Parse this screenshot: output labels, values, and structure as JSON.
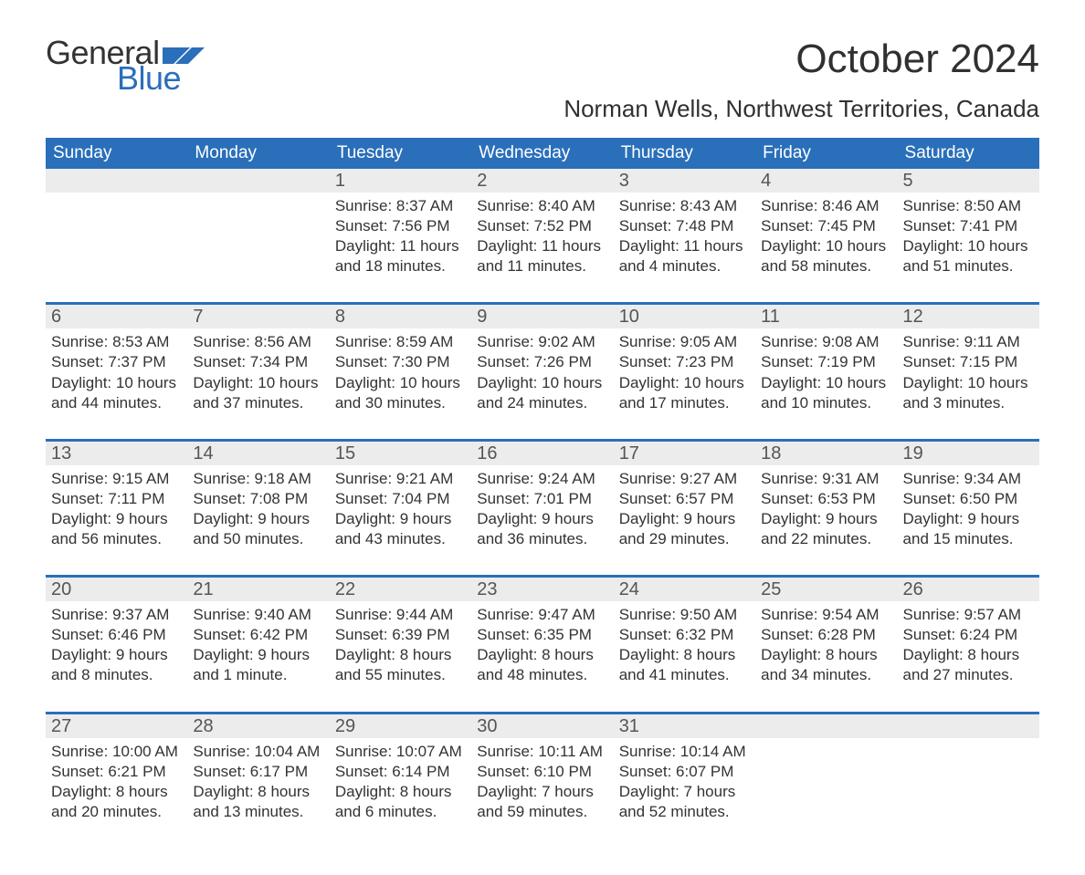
{
  "logo": {
    "word1": "General",
    "word2": "Blue",
    "word1_color": "#333333",
    "word2_color": "#2a6fba",
    "flag_color": "#2a6fba"
  },
  "title": "October 2024",
  "location": "Norman Wells, Northwest Territories, Canada",
  "colors": {
    "header_bg": "#2a6fba",
    "header_text": "#ffffff",
    "daynum_bg": "#ececec",
    "daynum_text": "#555555",
    "body_text": "#333333",
    "week_divider": "#2a6fba",
    "page_bg": "#ffffff"
  },
  "fonts": {
    "title_size": 44,
    "location_size": 26,
    "dow_size": 19,
    "daynum_size": 20,
    "body_size": 17
  },
  "days_of_week": [
    "Sunday",
    "Monday",
    "Tuesday",
    "Wednesday",
    "Thursday",
    "Friday",
    "Saturday"
  ],
  "weeks": [
    [
      {
        "num": "",
        "lines": []
      },
      {
        "num": "",
        "lines": []
      },
      {
        "num": "1",
        "lines": [
          "Sunrise: 8:37 AM",
          "Sunset: 7:56 PM",
          "Daylight: 11 hours",
          "and 18 minutes."
        ]
      },
      {
        "num": "2",
        "lines": [
          "Sunrise: 8:40 AM",
          "Sunset: 7:52 PM",
          "Daylight: 11 hours",
          "and 11 minutes."
        ]
      },
      {
        "num": "3",
        "lines": [
          "Sunrise: 8:43 AM",
          "Sunset: 7:48 PM",
          "Daylight: 11 hours",
          "and 4 minutes."
        ]
      },
      {
        "num": "4",
        "lines": [
          "Sunrise: 8:46 AM",
          "Sunset: 7:45 PM",
          "Daylight: 10 hours",
          "and 58 minutes."
        ]
      },
      {
        "num": "5",
        "lines": [
          "Sunrise: 8:50 AM",
          "Sunset: 7:41 PM",
          "Daylight: 10 hours",
          "and 51 minutes."
        ]
      }
    ],
    [
      {
        "num": "6",
        "lines": [
          "Sunrise: 8:53 AM",
          "Sunset: 7:37 PM",
          "Daylight: 10 hours",
          "and 44 minutes."
        ]
      },
      {
        "num": "7",
        "lines": [
          "Sunrise: 8:56 AM",
          "Sunset: 7:34 PM",
          "Daylight: 10 hours",
          "and 37 minutes."
        ]
      },
      {
        "num": "8",
        "lines": [
          "Sunrise: 8:59 AM",
          "Sunset: 7:30 PM",
          "Daylight: 10 hours",
          "and 30 minutes."
        ]
      },
      {
        "num": "9",
        "lines": [
          "Sunrise: 9:02 AM",
          "Sunset: 7:26 PM",
          "Daylight: 10 hours",
          "and 24 minutes."
        ]
      },
      {
        "num": "10",
        "lines": [
          "Sunrise: 9:05 AM",
          "Sunset: 7:23 PM",
          "Daylight: 10 hours",
          "and 17 minutes."
        ]
      },
      {
        "num": "11",
        "lines": [
          "Sunrise: 9:08 AM",
          "Sunset: 7:19 PM",
          "Daylight: 10 hours",
          "and 10 minutes."
        ]
      },
      {
        "num": "12",
        "lines": [
          "Sunrise: 9:11 AM",
          "Sunset: 7:15 PM",
          "Daylight: 10 hours",
          "and 3 minutes."
        ]
      }
    ],
    [
      {
        "num": "13",
        "lines": [
          "Sunrise: 9:15 AM",
          "Sunset: 7:11 PM",
          "Daylight: 9 hours",
          "and 56 minutes."
        ]
      },
      {
        "num": "14",
        "lines": [
          "Sunrise: 9:18 AM",
          "Sunset: 7:08 PM",
          "Daylight: 9 hours",
          "and 50 minutes."
        ]
      },
      {
        "num": "15",
        "lines": [
          "Sunrise: 9:21 AM",
          "Sunset: 7:04 PM",
          "Daylight: 9 hours",
          "and 43 minutes."
        ]
      },
      {
        "num": "16",
        "lines": [
          "Sunrise: 9:24 AM",
          "Sunset: 7:01 PM",
          "Daylight: 9 hours",
          "and 36 minutes."
        ]
      },
      {
        "num": "17",
        "lines": [
          "Sunrise: 9:27 AM",
          "Sunset: 6:57 PM",
          "Daylight: 9 hours",
          "and 29 minutes."
        ]
      },
      {
        "num": "18",
        "lines": [
          "Sunrise: 9:31 AM",
          "Sunset: 6:53 PM",
          "Daylight: 9 hours",
          "and 22 minutes."
        ]
      },
      {
        "num": "19",
        "lines": [
          "Sunrise: 9:34 AM",
          "Sunset: 6:50 PM",
          "Daylight: 9 hours",
          "and 15 minutes."
        ]
      }
    ],
    [
      {
        "num": "20",
        "lines": [
          "Sunrise: 9:37 AM",
          "Sunset: 6:46 PM",
          "Daylight: 9 hours",
          "and 8 minutes."
        ]
      },
      {
        "num": "21",
        "lines": [
          "Sunrise: 9:40 AM",
          "Sunset: 6:42 PM",
          "Daylight: 9 hours",
          "and 1 minute."
        ]
      },
      {
        "num": "22",
        "lines": [
          "Sunrise: 9:44 AM",
          "Sunset: 6:39 PM",
          "Daylight: 8 hours",
          "and 55 minutes."
        ]
      },
      {
        "num": "23",
        "lines": [
          "Sunrise: 9:47 AM",
          "Sunset: 6:35 PM",
          "Daylight: 8 hours",
          "and 48 minutes."
        ]
      },
      {
        "num": "24",
        "lines": [
          "Sunrise: 9:50 AM",
          "Sunset: 6:32 PM",
          "Daylight: 8 hours",
          "and 41 minutes."
        ]
      },
      {
        "num": "25",
        "lines": [
          "Sunrise: 9:54 AM",
          "Sunset: 6:28 PM",
          "Daylight: 8 hours",
          "and 34 minutes."
        ]
      },
      {
        "num": "26",
        "lines": [
          "Sunrise: 9:57 AM",
          "Sunset: 6:24 PM",
          "Daylight: 8 hours",
          "and 27 minutes."
        ]
      }
    ],
    [
      {
        "num": "27",
        "lines": [
          "Sunrise: 10:00 AM",
          "Sunset: 6:21 PM",
          "Daylight: 8 hours",
          "and 20 minutes."
        ]
      },
      {
        "num": "28",
        "lines": [
          "Sunrise: 10:04 AM",
          "Sunset: 6:17 PM",
          "Daylight: 8 hours",
          "and 13 minutes."
        ]
      },
      {
        "num": "29",
        "lines": [
          "Sunrise: 10:07 AM",
          "Sunset: 6:14 PM",
          "Daylight: 8 hours",
          "and 6 minutes."
        ]
      },
      {
        "num": "30",
        "lines": [
          "Sunrise: 10:11 AM",
          "Sunset: 6:10 PM",
          "Daylight: 7 hours",
          "and 59 minutes."
        ]
      },
      {
        "num": "31",
        "lines": [
          "Sunrise: 10:14 AM",
          "Sunset: 6:07 PM",
          "Daylight: 7 hours",
          "and 52 minutes."
        ]
      },
      {
        "num": "",
        "lines": []
      },
      {
        "num": "",
        "lines": []
      }
    ]
  ]
}
